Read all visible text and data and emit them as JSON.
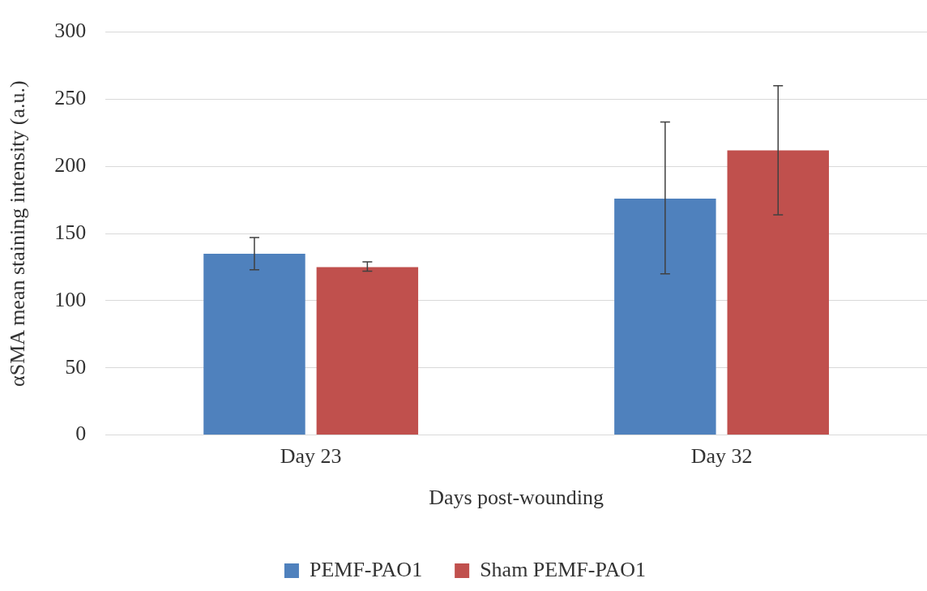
{
  "chart_data": {
    "type": "bar",
    "xlabel": "Days post-wounding",
    "ylabel": "αSMA mean staining intensity (a.u.)",
    "categories": [
      "Day 23",
      "Day 32"
    ],
    "series": [
      {
        "name": "PEMF-PAO1",
        "color": "#4f81bd",
        "values": [
          135,
          176
        ],
        "errors": [
          12,
          [
            120,
            233
          ]
        ]
      },
      {
        "name": "Sham PEMF-PAO1",
        "color": "#c0504d",
        "values": [
          125,
          212
        ],
        "errors": [
          [
            122,
            129
          ],
          [
            164,
            260
          ]
        ]
      }
    ],
    "ylim": [
      0,
      300
    ],
    "yticks": [
      0,
      50,
      100,
      150,
      200,
      250,
      300
    ],
    "grid": "y",
    "legend": "bottom"
  }
}
